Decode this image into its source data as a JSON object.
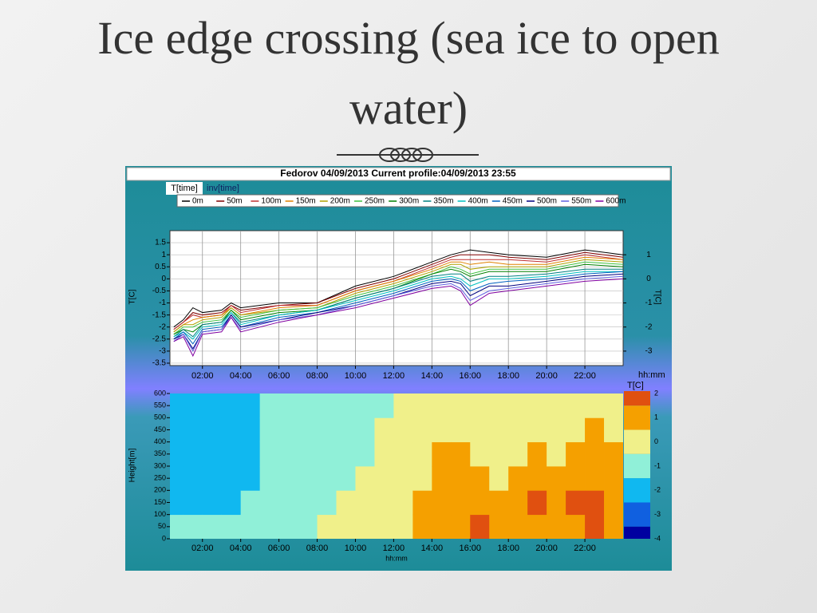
{
  "title": "Ice edge crossing (sea ice to open water)",
  "chart_data": [
    {
      "type": "line",
      "title": "Fedorov 04/09/2013 Current profile:04/09/2013 23:55",
      "tabs": [
        "T[time]",
        "inv[time]"
      ],
      "x": [
        0.5,
        1,
        1.5,
        2,
        3,
        3.5,
        4,
        6,
        8,
        10,
        12,
        14,
        15,
        15.5,
        16,
        17,
        18,
        20,
        22,
        24
      ],
      "xlim": [
        0.3,
        24
      ],
      "xticks": [
        {
          "value": 2,
          "label": "02:00"
        },
        {
          "value": 4,
          "label": "04:00"
        },
        {
          "value": 6,
          "label": "06:00"
        },
        {
          "value": 8,
          "label": "08:00"
        },
        {
          "value": 10,
          "label": "10:00"
        },
        {
          "value": 12,
          "label": "12:00"
        },
        {
          "value": 14,
          "label": "14:00"
        },
        {
          "value": 16,
          "label": "16:00"
        },
        {
          "value": 18,
          "label": "18:00"
        },
        {
          "value": 20,
          "label": "20:00"
        },
        {
          "value": 22,
          "label": "22:00"
        }
      ],
      "xlabel": "hh:mm",
      "ylabel": "T[C]",
      "ylim": [
        -3.6,
        2
      ],
      "yticks": [
        1.5,
        1,
        0.5,
        0,
        -0.5,
        -1,
        -1.5,
        -2,
        -2.5,
        -3,
        -3.5
      ],
      "y2label": "T[C]",
      "y2lim": [
        -3.6,
        2
      ],
      "y2ticks": [
        1,
        0,
        -1,
        -2,
        -3
      ],
      "grid": true,
      "series": [
        {
          "name": "0m",
          "color": "#000000",
          "values": [
            -2.0,
            -1.7,
            -1.2,
            -1.4,
            -1.3,
            -1.0,
            -1.2,
            -1.0,
            -1.0,
            -0.3,
            0.1,
            0.7,
            1.0,
            1.1,
            1.2,
            1.1,
            1.0,
            0.9,
            1.2,
            1.0
          ]
        },
        {
          "name": "50m",
          "color": "#800000",
          "values": [
            -2.1,
            -1.8,
            -1.4,
            -1.5,
            -1.4,
            -1.1,
            -1.3,
            -1.1,
            -1.0,
            -0.4,
            0.0,
            0.6,
            0.9,
            1.0,
            1.0,
            1.0,
            0.9,
            0.8,
            1.1,
            0.9
          ]
        },
        {
          "name": "100m",
          "color": "#c03030",
          "values": [
            -2.1,
            -1.8,
            -1.5,
            -1.6,
            -1.5,
            -1.1,
            -1.4,
            -1.1,
            -1.1,
            -0.5,
            -0.1,
            0.5,
            0.8,
            0.8,
            0.8,
            0.8,
            0.8,
            0.7,
            1.0,
            0.8
          ]
        },
        {
          "name": "150m",
          "color": "#e08000",
          "values": [
            -2.2,
            -1.9,
            -1.7,
            -1.6,
            -1.5,
            -1.2,
            -1.5,
            -1.2,
            -1.1,
            -0.5,
            -0.1,
            0.4,
            0.7,
            0.7,
            0.6,
            0.7,
            0.6,
            0.6,
            0.9,
            0.8
          ]
        },
        {
          "name": "200m",
          "color": "#b0a000",
          "values": [
            -2.2,
            -1.9,
            -1.9,
            -1.7,
            -1.6,
            -1.2,
            -1.5,
            -1.3,
            -1.2,
            -0.6,
            -0.2,
            0.3,
            0.6,
            0.6,
            0.4,
            0.5,
            0.5,
            0.5,
            0.8,
            0.7
          ]
        },
        {
          "name": "250m",
          "color": "#40c040",
          "values": [
            -2.3,
            -2.0,
            -2.0,
            -1.8,
            -1.7,
            -1.3,
            -1.6,
            -1.3,
            -1.2,
            -0.7,
            -0.3,
            0.2,
            0.5,
            0.4,
            0.2,
            0.4,
            0.4,
            0.4,
            0.7,
            0.6
          ]
        },
        {
          "name": "300m",
          "color": "#008000",
          "values": [
            -2.3,
            -2.1,
            -2.2,
            -1.9,
            -1.8,
            -1.3,
            -1.7,
            -1.4,
            -1.3,
            -0.8,
            -0.4,
            0.2,
            0.4,
            0.3,
            0.1,
            0.3,
            0.3,
            0.3,
            0.6,
            0.5
          ]
        },
        {
          "name": "350m",
          "color": "#008080",
          "values": [
            -2.4,
            -2.1,
            -2.4,
            -1.9,
            -1.8,
            -1.4,
            -1.8,
            -1.5,
            -1.3,
            -0.8,
            -0.4,
            0.1,
            0.2,
            0.2,
            -0.1,
            0.1,
            0.1,
            0.2,
            0.4,
            0.4
          ]
        },
        {
          "name": "400m",
          "color": "#00c0c0",
          "values": [
            -2.4,
            -2.2,
            -2.5,
            -2.0,
            -1.9,
            -1.4,
            -1.9,
            -1.5,
            -1.3,
            -0.9,
            -0.5,
            0.0,
            0.1,
            0.0,
            -0.3,
            0.0,
            0.0,
            0.1,
            0.3,
            0.3
          ]
        },
        {
          "name": "450m",
          "color": "#0060c0",
          "values": [
            -2.5,
            -2.2,
            -2.7,
            -2.1,
            -2.0,
            -1.5,
            -2.0,
            -1.6,
            -1.4,
            -1.0,
            -0.6,
            -0.1,
            0.0,
            -0.1,
            -0.5,
            -0.2,
            -0.1,
            0.0,
            0.2,
            0.3
          ]
        },
        {
          "name": "500m",
          "color": "#000080",
          "values": [
            -2.5,
            -2.3,
            -2.9,
            -2.2,
            -2.1,
            -1.5,
            -2.0,
            -1.7,
            -1.4,
            -1.1,
            -0.7,
            -0.2,
            -0.1,
            -0.2,
            -0.7,
            -0.3,
            -0.3,
            -0.1,
            0.1,
            0.2
          ]
        },
        {
          "name": "550m",
          "color": "#6060e0",
          "values": [
            -2.6,
            -2.3,
            -3.0,
            -2.2,
            -2.1,
            -1.6,
            -2.1,
            -1.7,
            -1.5,
            -1.1,
            -0.7,
            -0.3,
            -0.2,
            -0.4,
            -0.9,
            -0.5,
            -0.4,
            -0.2,
            0.0,
            0.1
          ]
        },
        {
          "name": "600m",
          "color": "#8000a0",
          "values": [
            -2.6,
            -2.4,
            -3.2,
            -2.3,
            -2.2,
            -1.6,
            -2.2,
            -1.8,
            -1.5,
            -1.2,
            -0.8,
            -0.4,
            -0.3,
            -0.5,
            -1.1,
            -0.6,
            -0.5,
            -0.3,
            -0.1,
            0.0
          ]
        }
      ]
    },
    {
      "type": "heatmap",
      "x": [
        0.5,
        1.5,
        2.5,
        3.5,
        4.5,
        5.5,
        6.5,
        7.5,
        8.5,
        9.5,
        10.5,
        11.5,
        12.5,
        13.5,
        14.5,
        15.5,
        16.5,
        17.5,
        18.5,
        19.5,
        20.5,
        21.5,
        22.5,
        23.5
      ],
      "y": [
        50,
        150,
        250,
        350,
        450,
        550
      ],
      "values": [
        [
          -1,
          -2,
          -2,
          -2,
          -2,
          -2
        ],
        [
          -1,
          -2,
          -2,
          -2,
          -2,
          -2
        ],
        [
          -1,
          -2,
          -2,
          -2,
          -2,
          -2
        ],
        [
          -1,
          -2,
          -2,
          -2,
          -2,
          -2
        ],
        [
          -1,
          -1,
          -2,
          -2,
          -2,
          -2
        ],
        [
          -1,
          -1,
          -1,
          -1,
          -1,
          -1
        ],
        [
          -1,
          -1,
          -1,
          -1,
          -1,
          -1
        ],
        [
          -1,
          -1,
          -1,
          -1,
          -1,
          -1
        ],
        [
          0,
          -1,
          -1,
          -1,
          -1,
          -1
        ],
        [
          0,
          0,
          -1,
          -1,
          -1,
          -1
        ],
        [
          0,
          0,
          0,
          -1,
          -1,
          -1
        ],
        [
          0,
          0,
          0,
          0,
          0,
          -1
        ],
        [
          0,
          0,
          0,
          0,
          0,
          0
        ],
        [
          1,
          1,
          0,
          0,
          0,
          0
        ],
        [
          1,
          1,
          1,
          1,
          0,
          0
        ],
        [
          1,
          1,
          1,
          1,
          0,
          0
        ],
        [
          2,
          1,
          1,
          0,
          0,
          0
        ],
        [
          1,
          1,
          0,
          0,
          0,
          0
        ],
        [
          1,
          1,
          1,
          0,
          0,
          0
        ],
        [
          1,
          2,
          1,
          1,
          0,
          0
        ],
        [
          1,
          1,
          1,
          0,
          0,
          0
        ],
        [
          1,
          2,
          1,
          1,
          0,
          0
        ],
        [
          2,
          2,
          1,
          1,
          1,
          0
        ],
        [
          1,
          1,
          1,
          1,
          0,
          0
        ]
      ],
      "xlim": [
        0.3,
        24
      ],
      "xticks": [
        {
          "value": 2,
          "label": "02:00"
        },
        {
          "value": 4,
          "label": "04:00"
        },
        {
          "value": 6,
          "label": "06:00"
        },
        {
          "value": 8,
          "label": "08:00"
        },
        {
          "value": 10,
          "label": "10:00"
        },
        {
          "value": 12,
          "label": "12:00"
        },
        {
          "value": 14,
          "label": "14:00"
        },
        {
          "value": 16,
          "label": "16:00"
        },
        {
          "value": 18,
          "label": "18:00"
        },
        {
          "value": 20,
          "label": "20:00"
        },
        {
          "value": 22,
          "label": "22:00"
        }
      ],
      "xlabel": "hh:mm",
      "ylabel": "Height[m]",
      "ylim": [
        0,
        600
      ],
      "yticks": [
        0,
        50,
        100,
        150,
        200,
        250,
        300,
        350,
        400,
        450,
        500,
        550,
        600
      ],
      "colorbar_label": "T[C]",
      "clim": [
        -4,
        2.1
      ],
      "levels": [
        2,
        1,
        0,
        -1,
        -2,
        -3,
        -4
      ],
      "colors": [
        "#e05010",
        "#f5a000",
        "#f0f08a",
        "#90f0d8",
        "#10b8f0",
        "#1060e0",
        "#0000a0"
      ]
    }
  ]
}
